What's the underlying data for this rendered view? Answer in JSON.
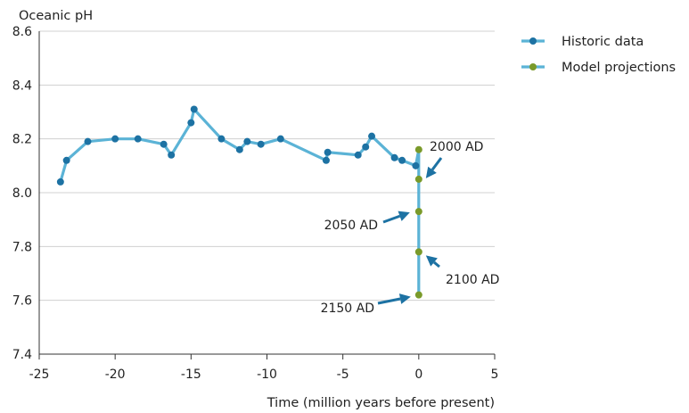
{
  "chart_data": {
    "type": "line",
    "title": "",
    "ylabel": "Oceanic pH",
    "xlabel": "Time (million years before present)",
    "xlim": [
      -25,
      5
    ],
    "ylim": [
      7.4,
      8.6
    ],
    "x_ticks": [
      -25,
      -20,
      -15,
      -10,
      -5,
      0,
      5
    ],
    "x_tick_labels": [
      "-25",
      "-20",
      "-15",
      "-10",
      "-5",
      "0",
      "5"
    ],
    "y_ticks": [
      7.4,
      7.6,
      7.8,
      8.0,
      8.2,
      8.4,
      8.6
    ],
    "y_tick_labels": [
      "7.4",
      "7.6",
      "7.8",
      "8.0",
      "8.2",
      "8.4",
      "8.6"
    ],
    "grid": "horizontal",
    "legend_position": "top-right",
    "colors": {
      "line": "#5bb3d6",
      "historic_marker": "#1d72a3",
      "projection_marker": "#7a9a2a",
      "arrow": "#1d72a3",
      "grid": "#d0d0d0"
    },
    "series": [
      {
        "name": "Historic data",
        "x": [
          -23.6,
          -23.2,
          -21.8,
          -20,
          -18.5,
          -16.8,
          -16.3,
          -15,
          -14.8,
          -13,
          -11.8,
          -11.3,
          -10.4,
          -9.1,
          -6.1,
          -6,
          -4,
          -3.5,
          -3.1,
          -1.6,
          -1.1,
          -0.2
        ],
        "y": [
          8.04,
          8.12,
          8.19,
          8.2,
          8.2,
          8.18,
          8.14,
          8.26,
          8.31,
          8.2,
          8.16,
          8.19,
          8.18,
          8.2,
          8.12,
          8.15,
          8.14,
          8.17,
          8.21,
          8.13,
          8.12,
          8.1
        ]
      },
      {
        "name": "Model projections",
        "x": [
          0,
          0,
          0,
          0,
          0
        ],
        "y": [
          8.16,
          8.05,
          7.93,
          7.78,
          7.62
        ]
      }
    ],
    "annotations": [
      {
        "text": "2000 AD",
        "x": 0,
        "y": 8.05
      },
      {
        "text": "2050 AD",
        "x": 0,
        "y": 7.93
      },
      {
        "text": "2100 AD",
        "x": 0,
        "y": 7.78
      },
      {
        "text": "2150 AD",
        "x": 0,
        "y": 7.62
      }
    ]
  }
}
